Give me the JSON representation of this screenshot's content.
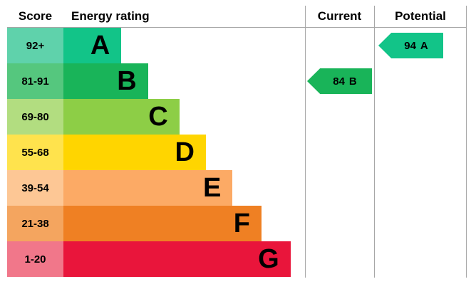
{
  "header": {
    "score": "Score",
    "energy_rating": "Energy rating",
    "current": "Current",
    "potential": "Potential"
  },
  "bands": [
    {
      "score": "92+",
      "letter": "A",
      "color": "#12c488",
      "tint": "#5fd2ab",
      "width_pct": 24
    },
    {
      "score": "81-91",
      "letter": "B",
      "color": "#19b459",
      "tint": "#55c77e",
      "width_pct": 35
    },
    {
      "score": "69-80",
      "letter": "C",
      "color": "#8dce46",
      "tint": "#b2dd80",
      "width_pct": 48
    },
    {
      "score": "55-68",
      "letter": "D",
      "color": "#ffd500",
      "tint": "#ffe34d",
      "width_pct": 59
    },
    {
      "score": "39-54",
      "letter": "E",
      "color": "#fcaa65",
      "tint": "#fdc795",
      "width_pct": 70
    },
    {
      "score": "21-38",
      "letter": "F",
      "color": "#ef8023",
      "tint": "#f4a55f",
      "width_pct": 82
    },
    {
      "score": "1-20",
      "letter": "G",
      "color": "#e9153b",
      "tint": "#f1778a",
      "width_pct": 94
    }
  ],
  "current": {
    "value": "84",
    "band": "B"
  },
  "potential": {
    "value": "94",
    "band": "A"
  },
  "colors": {
    "grid_line": "#a6a6a6",
    "text": "#000000"
  },
  "chart_data": {
    "type": "bar",
    "title": "Energy rating",
    "categories": [
      "A",
      "B",
      "C",
      "D",
      "E",
      "F",
      "G"
    ],
    "score_ranges": [
      "92+",
      "81-91",
      "69-80",
      "55-68",
      "39-54",
      "21-38",
      "1-20"
    ],
    "band_colors": [
      "#12c488",
      "#19b459",
      "#8dce46",
      "#ffd500",
      "#fcaa65",
      "#ef8023",
      "#e9153b"
    ],
    "bar_relative_lengths": [
      24,
      35,
      48,
      59,
      70,
      82,
      94
    ],
    "columns": [
      "Score",
      "Energy rating",
      "Current",
      "Potential"
    ],
    "current": {
      "score": 84,
      "band": "B"
    },
    "potential": {
      "score": 94,
      "band": "A"
    },
    "legend_position": "none",
    "grid": "column dividers only"
  }
}
